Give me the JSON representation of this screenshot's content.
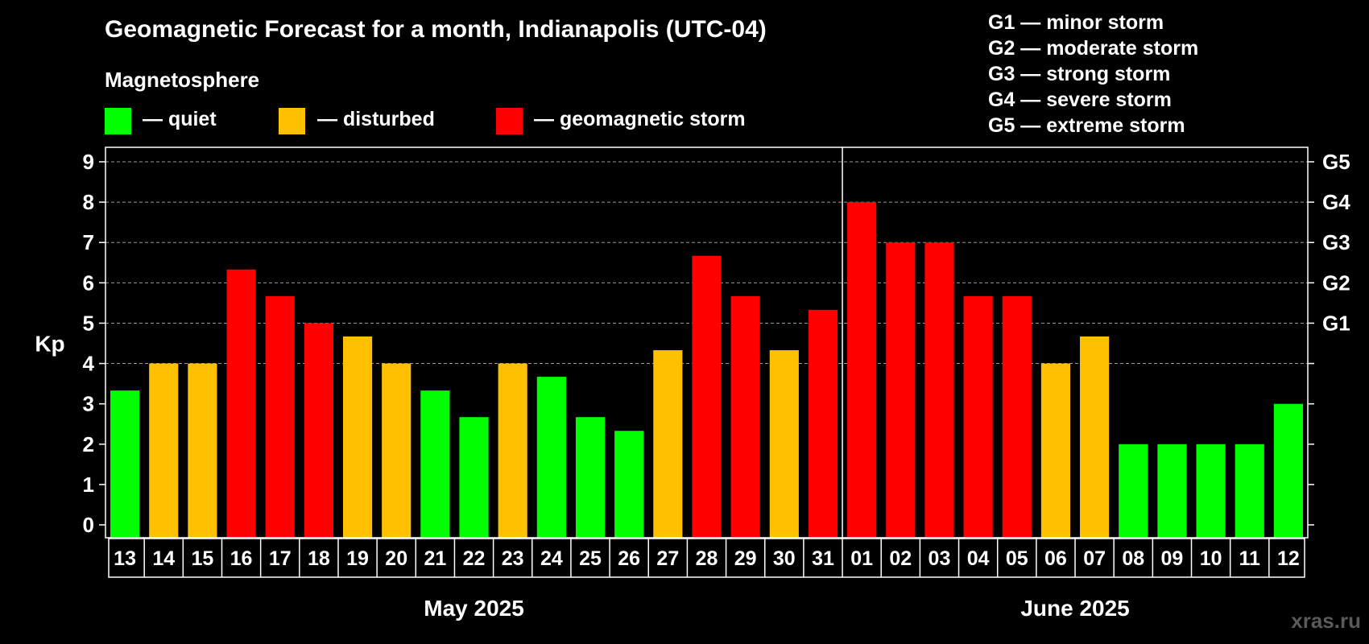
{
  "title": "Geomagnetic Forecast for a month, Indianapolis (UTC-04)",
  "legend": {
    "heading": "Magnetosphere",
    "items": [
      {
        "label": "— quiet",
        "color": "#00ff00"
      },
      {
        "label": "— disturbed",
        "color": "#ffc000"
      },
      {
        "label": "— geomagnetic storm",
        "color": "#ff0000"
      }
    ]
  },
  "storm_scale": [
    "G1 — minor storm",
    "G2 — moderate storm",
    "G3 — strong storm",
    "G4 — severe storm",
    "G5 — extreme storm"
  ],
  "watermark": "xras.ru",
  "chart_data": {
    "type": "bar",
    "ylabel": "Kp",
    "ylim": [
      0,
      9
    ],
    "yticks": [
      0,
      1,
      2,
      3,
      4,
      5,
      6,
      7,
      8,
      9
    ],
    "right_axis_labels": [
      {
        "value": 5,
        "label": "G1"
      },
      {
        "value": 6,
        "label": "G2"
      },
      {
        "value": 7,
        "label": "G3"
      },
      {
        "value": 8,
        "label": "G4"
      },
      {
        "value": 9,
        "label": "G5"
      }
    ],
    "grid": "dashed horizontal",
    "months": [
      {
        "label": "May 2025",
        "first_index": 0,
        "last_index": 18
      },
      {
        "label": "June 2025",
        "first_index": 19,
        "last_index": 30
      }
    ],
    "categories": [
      "13",
      "14",
      "15",
      "16",
      "17",
      "18",
      "19",
      "20",
      "21",
      "22",
      "23",
      "24",
      "25",
      "26",
      "27",
      "28",
      "29",
      "30",
      "31",
      "01",
      "02",
      "03",
      "04",
      "05",
      "06",
      "07",
      "08",
      "09",
      "10",
      "11",
      "12"
    ],
    "values": [
      3.33,
      4,
      4,
      6.33,
      5.67,
      5,
      4.67,
      4,
      3.33,
      2.67,
      4,
      3.67,
      2.67,
      2.33,
      4.33,
      6.67,
      5.67,
      4.33,
      5.33,
      8,
      7,
      7,
      5.67,
      5.67,
      4,
      4.67,
      2,
      2,
      2,
      2,
      3
    ],
    "levels": [
      "quiet",
      "disturbed",
      "disturbed",
      "storm",
      "storm",
      "storm",
      "disturbed",
      "disturbed",
      "quiet",
      "quiet",
      "disturbed",
      "quiet",
      "quiet",
      "quiet",
      "disturbed",
      "storm",
      "storm",
      "disturbed",
      "storm",
      "storm",
      "storm",
      "storm",
      "storm",
      "storm",
      "disturbed",
      "disturbed",
      "quiet",
      "quiet",
      "quiet",
      "quiet",
      "quiet"
    ],
    "level_colors": {
      "quiet": "#00ff00",
      "disturbed": "#ffc000",
      "storm": "#ff0000"
    }
  }
}
